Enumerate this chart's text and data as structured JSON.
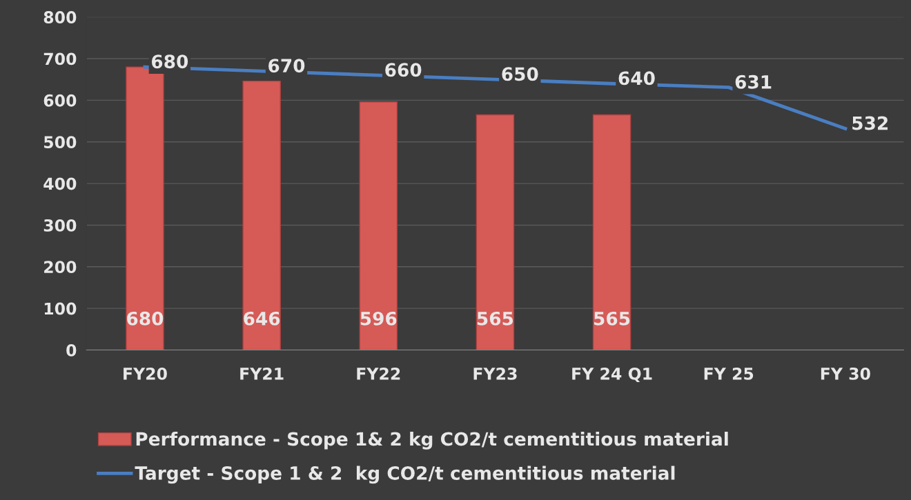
{
  "chart_data": {
    "type": "bar",
    "categories": [
      "FY20",
      "FY21",
      "FY22",
      "FY23",
      "FY 24 Q1",
      "FY 25",
      "FY 30"
    ],
    "series": [
      {
        "name": "Performance - Scope 1& 2 kg CO2/t cementitious material",
        "color": "#d65a56",
        "values": [
          680,
          646,
          596,
          565,
          565,
          null,
          null
        ],
        "value_labels": [
          "680",
          "646",
          "596",
          "565",
          "565",
          null,
          null
        ]
      },
      {
        "name": "Target - Scope 1 & 2  kg CO2/t cementitious material",
        "type": "line",
        "color": "#4a7ec2",
        "values": [
          680,
          670,
          660,
          650,
          640,
          631,
          532
        ],
        "value_labels": [
          "680",
          "670",
          "660",
          "650",
          "640",
          "631",
          "532"
        ]
      }
    ],
    "ylim": [
      0,
      800
    ],
    "yticks": [
      0,
      100,
      200,
      300,
      400,
      500,
      600,
      700,
      800
    ],
    "grid": "y",
    "legend": "bottom",
    "marker": "none",
    "line_style": "solid"
  }
}
